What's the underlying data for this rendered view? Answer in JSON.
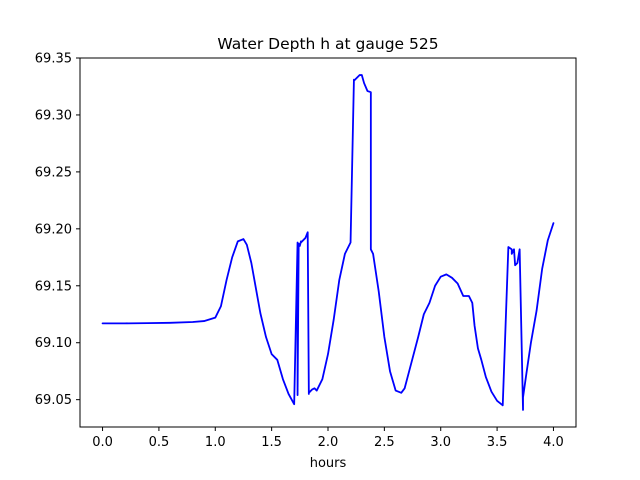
{
  "chart_data": {
    "type": "line",
    "title": "Water Depth h at gauge 525",
    "xlabel": "hours",
    "ylabel": "",
    "xlim": [
      -0.2,
      4.2
    ],
    "ylim": [
      69.026,
      69.35
    ],
    "xticks": [
      0.0,
      0.5,
      1.0,
      1.5,
      2.0,
      2.5,
      3.0,
      3.5,
      4.0
    ],
    "xtick_labels": [
      "0.0",
      "0.5",
      "1.0",
      "1.5",
      "2.0",
      "2.5",
      "3.0",
      "3.5",
      "4.0"
    ],
    "yticks": [
      69.05,
      69.1,
      69.15,
      69.2,
      69.25,
      69.3,
      69.35
    ],
    "ytick_labels": [
      "69.05",
      "69.10",
      "69.15",
      "69.20",
      "69.25",
      "69.30",
      "69.35"
    ],
    "grid": false,
    "series": [
      {
        "color": "#0000ff",
        "x": [
          0.0,
          0.2,
          0.4,
          0.6,
          0.8,
          0.9,
          1.0,
          1.05,
          1.1,
          1.15,
          1.2,
          1.25,
          1.28,
          1.32,
          1.36,
          1.4,
          1.45,
          1.5,
          1.55,
          1.6,
          1.65,
          1.7,
          1.73,
          1.73,
          1.74,
          1.75,
          1.76,
          1.76,
          1.8,
          1.82,
          1.83,
          1.83,
          1.86,
          1.88,
          1.9,
          1.95,
          2.0,
          2.05,
          2.1,
          2.15,
          2.2,
          2.23,
          2.23,
          2.28,
          2.3,
          2.32,
          2.35,
          2.38,
          2.38,
          2.4,
          2.45,
          2.5,
          2.55,
          2.6,
          2.65,
          2.68,
          2.72,
          2.8,
          2.85,
          2.9,
          2.95,
          3.0,
          3.05,
          3.1,
          3.15,
          3.2,
          3.25,
          3.28,
          3.3,
          3.33,
          3.36,
          3.4,
          3.45,
          3.5,
          3.55,
          3.6,
          3.63,
          3.63,
          3.65,
          3.66,
          3.68,
          3.7,
          3.73,
          3.73,
          3.76,
          3.8,
          3.85,
          3.9,
          3.95,
          4.0
        ],
        "y": [
          69.117,
          69.117,
          69.1172,
          69.1175,
          69.1182,
          69.119,
          69.122,
          69.132,
          69.155,
          69.175,
          69.189,
          69.191,
          69.186,
          69.17,
          69.148,
          69.126,
          69.105,
          69.09,
          69.085,
          69.068,
          69.055,
          69.046,
          69.188,
          69.054,
          69.187,
          69.185,
          69.189,
          69.188,
          69.192,
          69.197,
          69.055,
          69.056,
          69.059,
          69.06,
          69.058,
          69.068,
          69.09,
          69.12,
          69.155,
          69.178,
          69.188,
          69.331,
          69.33,
          69.335,
          69.335,
          69.328,
          69.321,
          69.32,
          69.182,
          69.178,
          69.145,
          69.105,
          69.075,
          69.058,
          69.056,
          69.06,
          69.075,
          69.105,
          69.125,
          69.135,
          69.15,
          69.158,
          69.16,
          69.157,
          69.152,
          69.141,
          69.141,
          69.135,
          69.115,
          69.095,
          69.085,
          69.07,
          69.057,
          69.049,
          69.045,
          69.184,
          69.182,
          69.178,
          69.182,
          69.168,
          69.17,
          69.182,
          69.041,
          69.052,
          69.073,
          69.1,
          69.128,
          69.165,
          69.19,
          69.205
        ]
      }
    ]
  }
}
